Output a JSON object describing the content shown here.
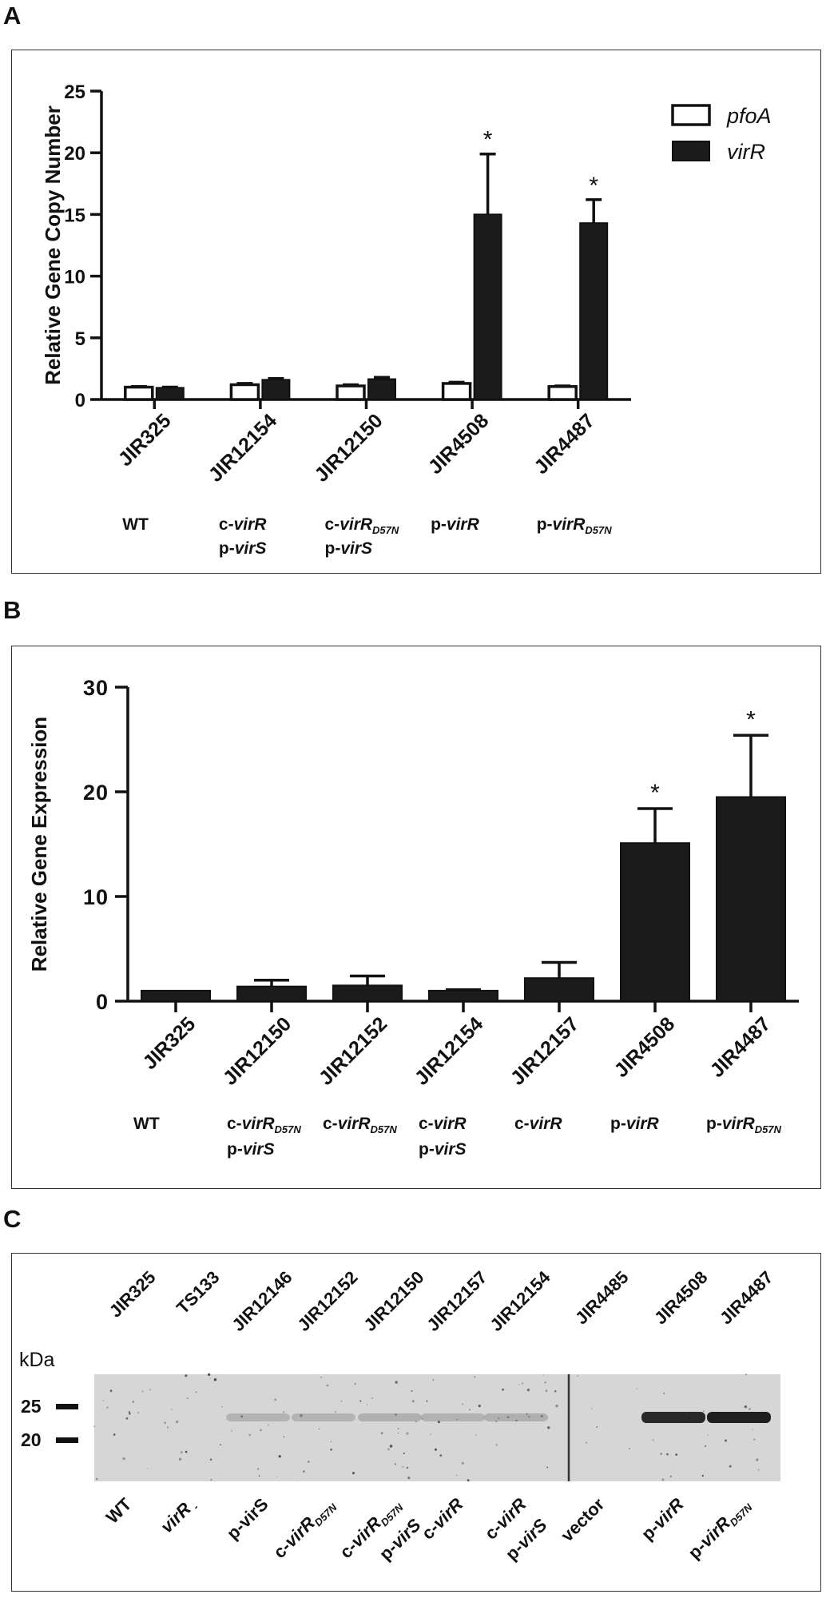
{
  "panels": {
    "a": "A",
    "b": "B",
    "c": "C"
  },
  "chart_data": [
    {
      "type": "bar",
      "title": "",
      "xlabel": "",
      "ylabel": "Relative Gene Copy Number",
      "ylim": [
        0,
        25
      ],
      "yticks": [
        "0",
        "5",
        "10",
        "15",
        "20",
        "25"
      ],
      "categories": [
        "JIR325",
        "JIR12154",
        "JIR12150",
        "JIR4508",
        "JIR4487"
      ],
      "genotypes": [
        [
          [
            "WT",
            ""
          ]
        ],
        [
          [
            "c-",
            "virR",
            ""
          ],
          [
            "p-",
            "virS",
            ""
          ]
        ],
        [
          [
            "c-",
            "virR",
            "D57N"
          ],
          [
            "p-",
            "virS",
            ""
          ]
        ],
        [
          [
            "p-",
            "virR",
            ""
          ]
        ],
        [
          [
            "p-",
            "virR",
            "D57N"
          ]
        ]
      ],
      "series": [
        {
          "name": "pfoA",
          "style": "open",
          "values": [
            1.0,
            1.2,
            1.1,
            1.3,
            1.05
          ],
          "errors": [
            0.05,
            0.1,
            0.1,
            0.1,
            0.05
          ]
        },
        {
          "name": "virR",
          "style": "solid",
          "values": [
            0.95,
            1.6,
            1.65,
            15.0,
            14.3
          ],
          "errors": [
            0.05,
            0.1,
            0.15,
            4.9,
            1.9
          ]
        }
      ],
      "annotations": [
        {
          "category": "JIR4508",
          "series": "virR",
          "text": "*"
        },
        {
          "category": "JIR4487",
          "series": "virR",
          "text": "*"
        }
      ],
      "legend": "top-right"
    },
    {
      "type": "bar",
      "title": "",
      "xlabel": "",
      "ylabel": "Relative Gene Expression",
      "ylim": [
        0,
        30
      ],
      "yticks": [
        "0",
        "10",
        "20",
        "30"
      ],
      "categories": [
        "JIR325",
        "JIR12150",
        "JIR12152",
        "JIR12154",
        "JIR12157",
        "JIR4508",
        "JIR4487"
      ],
      "genotypes": [
        [
          [
            "WT",
            ""
          ]
        ],
        [
          [
            "c-",
            "virR",
            "D57N"
          ],
          [
            "p-",
            "virS",
            ""
          ]
        ],
        [
          [
            "c-",
            "virR",
            "D57N"
          ]
        ],
        [
          [
            "c-",
            "virR",
            ""
          ],
          [
            "p-",
            "virS",
            ""
          ]
        ],
        [
          [
            "c-",
            "virR",
            ""
          ]
        ],
        [
          [
            "p-",
            "virR",
            ""
          ]
        ],
        [
          [
            "p-",
            "virR",
            "D57N"
          ]
        ]
      ],
      "series": [
        {
          "name": "virR",
          "style": "solid",
          "values": [
            1.0,
            1.4,
            1.5,
            1.0,
            2.2,
            15.1,
            19.5
          ],
          "errors": [
            0.0,
            0.6,
            0.9,
            0.1,
            1.5,
            3.3,
            5.9
          ]
        }
      ],
      "annotations": [
        {
          "category": "JIR4508",
          "text": "*"
        },
        {
          "category": "JIR4487",
          "text": "*"
        }
      ]
    }
  ],
  "blot": {
    "kda_label": "kDa",
    "markers": [
      "25",
      "20"
    ],
    "lanes": [
      {
        "strain": "JIR325",
        "geno": [
          [
            "WT",
            "",
            ""
          ]
        ],
        "band": 0.0
      },
      {
        "strain": "TS133",
        "geno": [
          [
            "",
            "virR",
            " -"
          ]
        ],
        "band": 0.0
      },
      {
        "strain": "JIR12146",
        "geno": [
          [
            "p-virS",
            "",
            ""
          ]
        ],
        "band": 0.1
      },
      {
        "strain": "JIR12152",
        "geno": [
          [
            "c-",
            "virR",
            "D57N"
          ]
        ],
        "band": 0.1
      },
      {
        "strain": "JIR12150",
        "geno": [
          [
            "c-",
            "virR",
            "D57N"
          ],
          [
            "p-",
            "virS",
            ""
          ]
        ],
        "band": 0.15
      },
      {
        "strain": "JIR12157",
        "geno": [
          [
            "c-",
            "virR",
            ""
          ]
        ],
        "band": 0.12
      },
      {
        "strain": "JIR12154",
        "geno": [
          [
            "c-",
            "virR",
            ""
          ],
          [
            "p-",
            "virS",
            ""
          ]
        ],
        "band": 0.15
      },
      {
        "strain": "JIR4485",
        "geno": [
          [
            "vector",
            "",
            ""
          ]
        ],
        "band": 0.0
      },
      {
        "strain": "JIR4508",
        "geno": [
          [
            "p-",
            "virR",
            ""
          ]
        ],
        "band": 0.9
      },
      {
        "strain": "JIR4487",
        "geno": [
          [
            "p-",
            "virR",
            "D57N"
          ]
        ],
        "band": 0.95
      }
    ]
  }
}
